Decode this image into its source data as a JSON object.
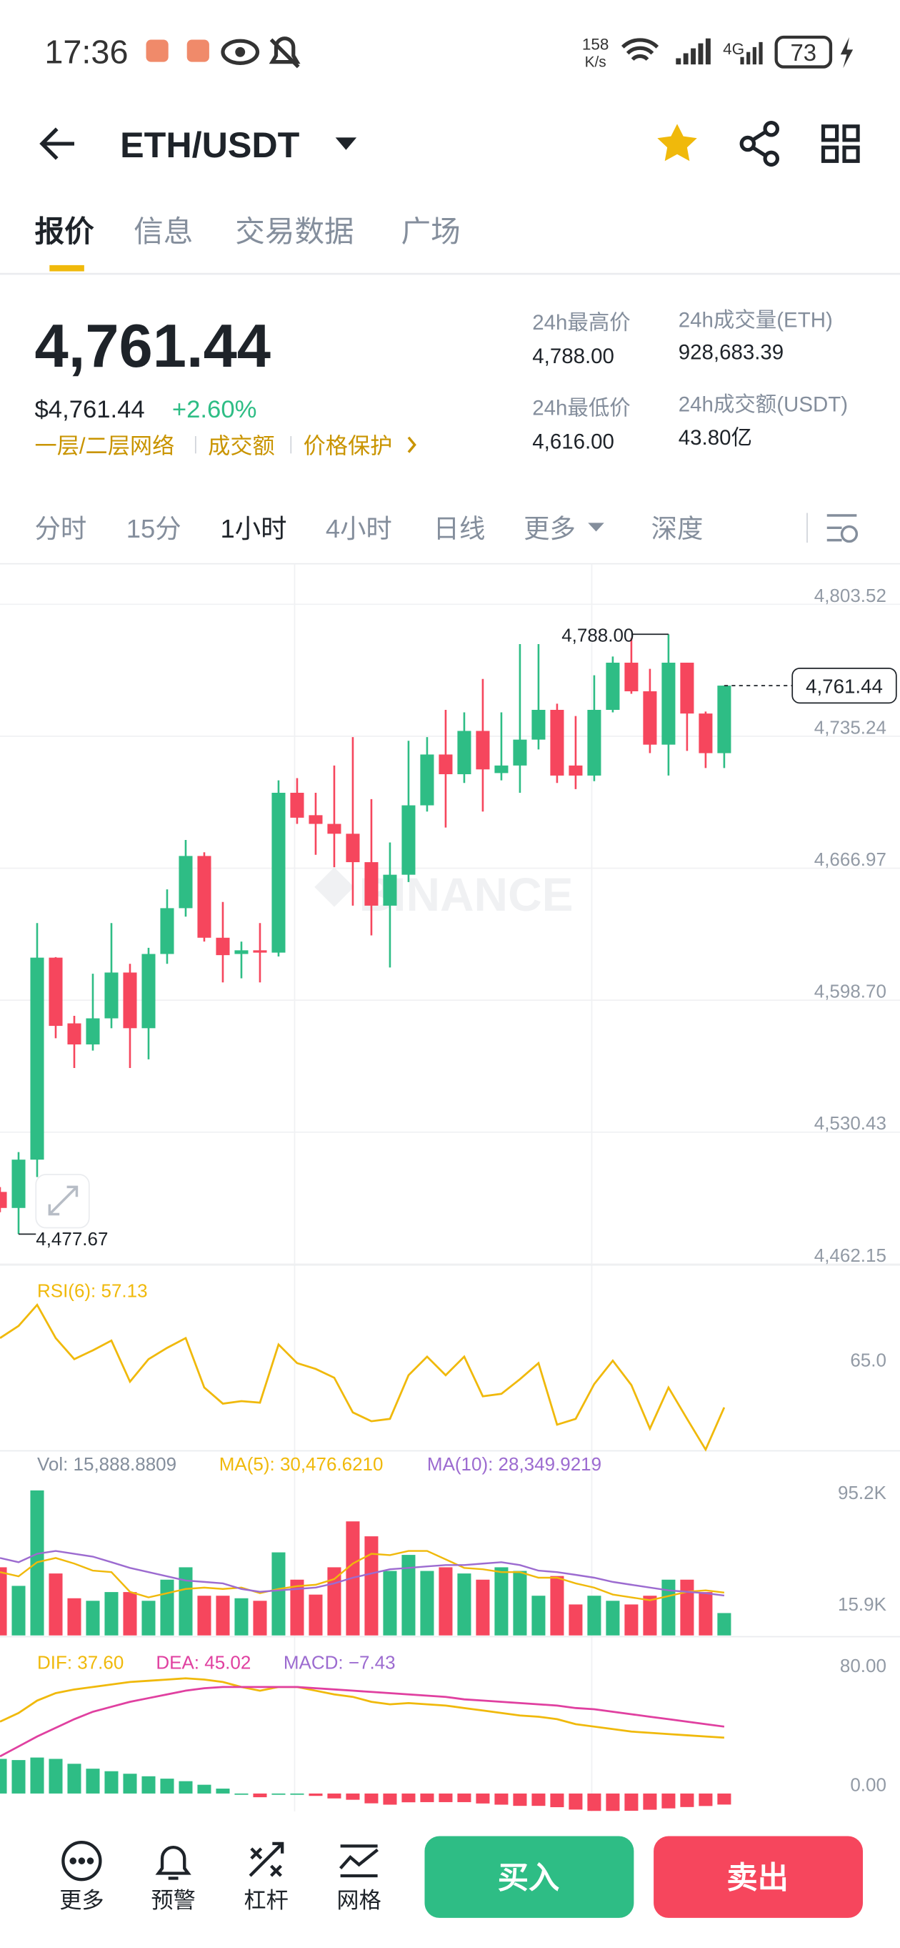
{
  "status_bar": {
    "time": "17:36",
    "net_speed": "158",
    "net_unit": "K/s",
    "signal": "4G",
    "battery": "73"
  },
  "header": {
    "pair": "ETH/USDT"
  },
  "tabs": [
    "报价",
    "信息",
    "交易数据",
    "广场"
  ],
  "ticker": {
    "price": "4,761.44",
    "price_usd": "$4,761.44",
    "change": "+2.60%",
    "tags": [
      "一层/二层网络",
      "成交额",
      "价格保护"
    ],
    "stats": [
      {
        "label": "24h最高价",
        "value": "4,788.00"
      },
      {
        "label": "24h成交量(ETH)",
        "value": "928,683.39"
      },
      {
        "label": "24h最低价",
        "value": "4,616.00"
      },
      {
        "label": "24h成交额(USDT)",
        "value": "43.80亿"
      }
    ]
  },
  "intervals": [
    "分时",
    "15分",
    "1小时",
    "4小时",
    "日线",
    "更多",
    "深度"
  ],
  "chart_data": [
    {
      "type": "candlestick",
      "watermark": "BINANCE",
      "up_color": "#2ebd85",
      "down_color": "#f6465d",
      "grid": true,
      "open": [
        4499.5,
        4491.2,
        4516.2,
        4620.7,
        4586.7,
        4575.8,
        4589.3,
        4613.0,
        4584.2,
        4622.6,
        4646.3,
        4673.3,
        4631.0,
        4622.6,
        4624.5,
        4623.3,
        4706.0,
        4694.4,
        4689.9,
        4684.8,
        4670.1,
        4647.6,
        4663.6,
        4699.5,
        4725.8,
        4715.6,
        4738.0,
        4716.2,
        4720.1,
        4733.5,
        4748.9,
        4720.1,
        4714.9,
        4748.9,
        4773.3,
        4758.5,
        4730.9,
        4773.3,
        4747.0,
        4726.5
      ],
      "high": [
        4502.0,
        4520.1,
        4638.6,
        4621.0,
        4590.6,
        4612.4,
        4638.6,
        4617.5,
        4625.8,
        4656.0,
        4681.6,
        4675.2,
        4649.5,
        4629.0,
        4638.6,
        4712.4,
        4713.6,
        4706.0,
        4720.1,
        4734.8,
        4702.7,
        4680.3,
        4732.9,
        4734.8,
        4748.9,
        4747.6,
        4764.9,
        4747.6,
        4782.9,
        4782.9,
        4752.1,
        4745.7,
        4766.8,
        4776.5,
        4786.0,
        4770.1,
        4788.0,
        4773.3,
        4748.0,
        4761.44
      ],
      "low": [
        4489.0,
        4477.67,
        4507.2,
        4579.0,
        4563.6,
        4572.6,
        4584.2,
        4563.6,
        4568.1,
        4617.5,
        4641.9,
        4629.0,
        4607.9,
        4610.0,
        4607.9,
        4621.3,
        4689.9,
        4673.9,
        4667.5,
        4647.6,
        4632.2,
        4615.6,
        4659.8,
        4696.3,
        4688.0,
        4711.1,
        4696.3,
        4712.4,
        4706.0,
        4728.4,
        4711.1,
        4707.9,
        4712.0,
        4747.6,
        4757.2,
        4726.5,
        4714.9,
        4727.7,
        4718.8,
        4718.8
      ],
      "close": [
        4491.2,
        4516.2,
        4620.7,
        4585.4,
        4575.8,
        4589.3,
        4613.0,
        4584.2,
        4622.6,
        4646.3,
        4673.3,
        4631.0,
        4622.0,
        4624.5,
        4623.3,
        4706.0,
        4693.1,
        4689.9,
        4684.8,
        4670.1,
        4647.6,
        4663.6,
        4699.5,
        4725.8,
        4715.6,
        4738.0,
        4718.1,
        4720.1,
        4733.5,
        4748.9,
        4714.9,
        4714.9,
        4748.9,
        4773.3,
        4758.5,
        4730.9,
        4773.3,
        4747.0,
        4726.5,
        4761.44
      ],
      "ylim": [
        4461.7,
        4824.5
      ],
      "yticks": [
        {
          "value": 4803.52,
          "label": "4,803.52"
        },
        {
          "value": 4735.24,
          "label": "4,735.24"
        },
        {
          "value": 4666.97,
          "label": "4,666.97"
        },
        {
          "value": 4598.7,
          "label": "4,598.70"
        },
        {
          "value": 4530.43,
          "label": "4,530.43"
        },
        {
          "value": 4462.15,
          "label": "4,462.15"
        }
      ],
      "max_label": {
        "value": 4788.0,
        "label": "4,788.00"
      },
      "min_label": {
        "value": 4477.67,
        "label": "4,477.67"
      },
      "last_label": {
        "value": 4761.44,
        "label": "4,761.44"
      }
    },
    {
      "type": "line",
      "title": "RSI(6): 57.13",
      "color": "#f0b90b",
      "values": [
        71.3,
        73.8,
        78.1,
        71.3,
        67.0,
        68.8,
        70.8,
        62.4,
        67.0,
        69.3,
        71.3,
        61.2,
        57.9,
        58.4,
        58.1,
        70.0,
        66.2,
        65.0,
        63.2,
        56.1,
        54.3,
        54.8,
        63.7,
        67.5,
        63.7,
        67.5,
        59.4,
        59.9,
        62.9,
        66.2,
        53.6,
        54.8,
        61.9,
        66.7,
        61.7,
        52.8,
        61.2,
        54.8,
        48.5,
        57.13
      ],
      "ylim": [
        48,
        86
      ],
      "yticks": [
        {
          "value": 65,
          "label": "65.0"
        }
      ]
    },
    {
      "type": "volume",
      "up_color": "#2ebd85",
      "down_color": "#f6465d",
      "series": [
        {
          "name": "Vol: 15,888.8809",
          "color": "#848e9c",
          "values": [
            48400,
            35200,
            103000,
            44000,
            26400,
            24600,
            30800,
            30800,
            24600,
            39600,
            48400,
            28200,
            28200,
            26400,
            24600,
            59000,
            39600,
            29000,
            48400,
            81000,
            70400,
            45800,
            57200,
            45800,
            48400,
            44000,
            39600,
            48400,
            45800,
            28200,
            42200,
            22000,
            28200,
            24600,
            22000,
            28200,
            39600,
            39600,
            30800,
            15888.8809
          ]
        },
        {
          "name": "MA(5): 30,476.6210",
          "color": "#f0b90b",
          "values": [
            45000,
            42000,
            52000,
            55000,
            51000,
            46000,
            45000,
            31000,
            27000,
            30000,
            33000,
            34000,
            33000,
            34000,
            30000,
            33000,
            35000,
            36000,
            40000,
            51000,
            58000,
            57000,
            60000,
            60000,
            54000,
            48000,
            47000,
            45000,
            45000,
            41000,
            41000,
            37000,
            34000,
            29000,
            27000,
            25000,
            28000,
            31000,
            32000,
            30476.621
          ]
        },
        {
          "name": "MA(10): 28,349.9219",
          "color": "#9c6bd0",
          "values": [
            55000,
            52000,
            58000,
            60000,
            58000,
            56000,
            52000,
            48000,
            45000,
            42000,
            39000,
            38000,
            37000,
            33000,
            31000,
            32000,
            33000,
            34000,
            37000,
            41000,
            44000,
            47000,
            48000,
            49000,
            50000,
            50000,
            51000,
            52000,
            50000,
            46000,
            45000,
            43000,
            41000,
            38000,
            36000,
            34000,
            32000,
            31000,
            30000,
            28349.9219
          ]
        }
      ],
      "ylim": [
        0,
        110000
      ],
      "yticks": [
        {
          "value": 95200,
          "label": "95.2K"
        },
        {
          "value": 15900,
          "label": "15.9K"
        }
      ]
    },
    {
      "type": "macd",
      "up_color": "#2ebd85",
      "down_color": "#f6465d",
      "series": [
        {
          "name": "DIF: 37.60",
          "color": "#f0b90b",
          "values": [
            48.3,
            54.2,
            62.5,
            67.5,
            70.0,
            71.7,
            73.3,
            75.0,
            75.8,
            76.7,
            77.5,
            76.7,
            75.0,
            71.7,
            69.2,
            71.7,
            71.7,
            69.2,
            66.7,
            65.0,
            61.7,
            60.0,
            60.8,
            60.0,
            59.2,
            57.5,
            55.8,
            54.2,
            52.5,
            51.7,
            50.0,
            46.7,
            45.0,
            43.3,
            41.7,
            40.8,
            40.0,
            39.2,
            38.3,
            37.6
          ]
        },
        {
          "name": "DEA: 45.02",
          "color": "#e040a0",
          "values": [
            25.0,
            31.7,
            38.3,
            44.2,
            50.0,
            55.0,
            58.3,
            61.7,
            64.2,
            66.7,
            69.2,
            70.8,
            71.7,
            71.7,
            71.7,
            71.7,
            71.7,
            70.8,
            70.0,
            69.2,
            68.3,
            67.5,
            66.7,
            65.8,
            65.0,
            63.3,
            62.5,
            61.7,
            60.8,
            60.0,
            59.2,
            57.5,
            56.7,
            55.0,
            53.3,
            51.7,
            50.0,
            48.3,
            46.7,
            45.02
          ]
        },
        {
          "name": "MACD: −7.43",
          "color": "#9c6bd0",
          "values": [
            23.3,
            22.5,
            24.2,
            23.3,
            20.0,
            16.7,
            15.0,
            13.3,
            11.6,
            10.0,
            8.3,
            5.9,
            3.3,
            0,
            -2.5,
            0,
            0,
            -1.6,
            -3.3,
            -4.2,
            -6.6,
            -7.5,
            -5.9,
            -5.8,
            -5.8,
            -5.8,
            -6.7,
            -7.5,
            -8.3,
            -8.3,
            -9.2,
            -10.8,
            -11.7,
            -11.7,
            -11.6,
            -10.9,
            -10.0,
            -9.1,
            -8.4,
            -7.43
          ]
        }
      ],
      "ylim": [
        -12,
        98
      ],
      "yticks": [
        {
          "value": 80,
          "label": "80.00"
        },
        {
          "value": 0,
          "label": "0.00"
        }
      ]
    }
  ],
  "bottom_bar": {
    "tools": [
      "更多",
      "预警",
      "杠杆",
      "网格"
    ],
    "buy": "买入",
    "sell": "卖出"
  }
}
